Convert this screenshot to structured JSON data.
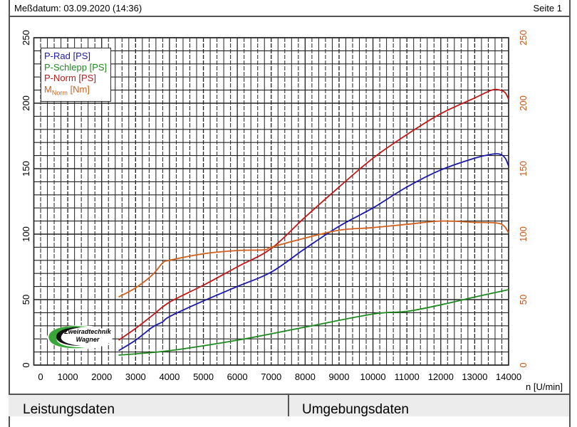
{
  "header": {
    "date_label": "Meßdatum: 03.09.2020 (14:36)",
    "page_label": "Seite 1"
  },
  "sections": {
    "left": "Leistungsdaten",
    "right": "Umgebungsdaten"
  },
  "logo": {
    "line1": "Zweiradtechnik",
    "line2": "Wagner"
  },
  "colors": {
    "p_rad": "#1a1aa8",
    "p_schlepp": "#1f8a1f",
    "p_norm": "#c01818",
    "m_norm": "#d0601e"
  },
  "chart_data": {
    "type": "line",
    "xlabel": "n [U/min]",
    "xlim": [
      0,
      14000
    ],
    "x_ticks": [
      "0",
      "1000",
      "2000",
      "3000",
      "4000",
      "5000",
      "6000",
      "7000",
      "8000",
      "9000",
      "10000",
      "11000",
      "12000",
      "13000",
      "14000"
    ],
    "ylim": [
      0,
      250
    ],
    "y_ticks": [
      "0",
      "50",
      "100",
      "150",
      "200",
      "250"
    ],
    "y2_ticks": [
      "0",
      "50",
      "100",
      "150",
      "200",
      "250"
    ],
    "grid": true,
    "legend_placement": "top-left",
    "legend": {
      "p_rad": "P-Rad [PS]",
      "p_schlepp": "P-Schlepp [PS]",
      "p_norm": "P-Norm [PS]",
      "m_norm_main": "M",
      "m_norm_sub": "Norm",
      "m_norm_unit": " [Nm]"
    },
    "series": [
      {
        "key": "p_rad",
        "name": "P-Rad [PS]",
        "x": [
          2500,
          3000,
          3500,
          3800,
          4000,
          5000,
          6000,
          7000,
          8000,
          9000,
          10000,
          11000,
          12000,
          13000,
          13500,
          13750,
          13900,
          14000
        ],
        "y": [
          11,
          19,
          29,
          33,
          37,
          49,
          60,
          71,
          89,
          106,
          120,
          136,
          149,
          158,
          161,
          161,
          158,
          152
        ]
      },
      {
        "key": "p_schlepp",
        "name": "P-Schlepp [PS]",
        "x": [
          2500,
          4000,
          6000,
          8000,
          10000,
          11000,
          12000,
          13000,
          14000
        ],
        "y": [
          7.6,
          11,
          19,
          29,
          39,
          41,
          46,
          52,
          57.6
        ]
      },
      {
        "key": "p_norm",
        "name": "P-Norm [PS]",
        "x": [
          2500,
          3000,
          3500,
          4000,
          5000,
          6000,
          7000,
          8000,
          9000,
          10000,
          11000,
          12000,
          13000,
          13500,
          13750,
          13900,
          14000
        ],
        "y": [
          19,
          28,
          38,
          48,
          61,
          75,
          89,
          113,
          136,
          158,
          176,
          192,
          204,
          210,
          210,
          208,
          203
        ]
      },
      {
        "key": "m_norm",
        "name": "M_Norm [Nm]",
        "x": [
          2500,
          3000,
          3500,
          3800,
          4000,
          5000,
          6000,
          6800,
          7000,
          8000,
          9000,
          10000,
          11000,
          12000,
          13000,
          13750,
          14000
        ],
        "y": [
          52,
          59,
          69,
          78,
          80,
          85,
          87.5,
          88,
          90,
          97,
          103,
          105,
          107.5,
          110,
          109,
          108,
          101
        ]
      }
    ]
  }
}
